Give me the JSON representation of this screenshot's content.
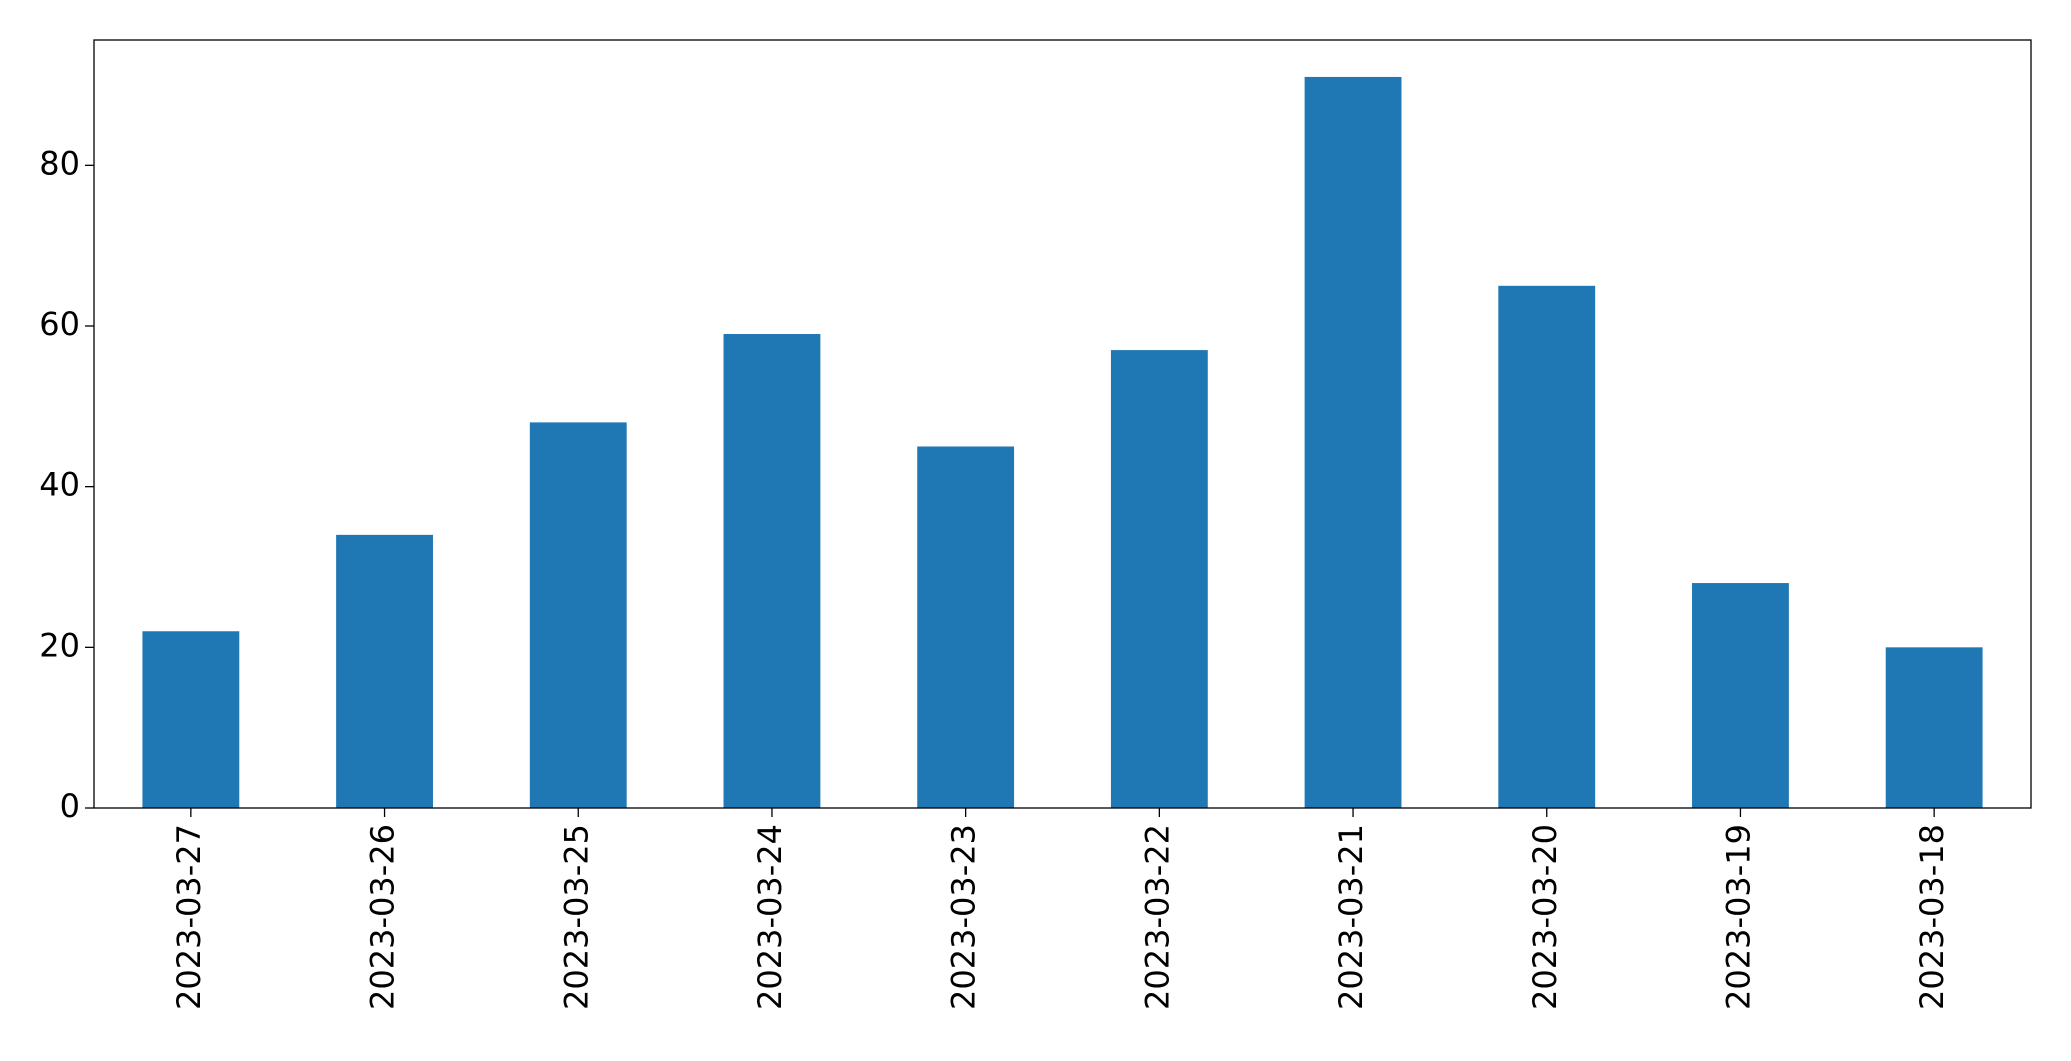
{
  "chart_data": {
    "type": "bar",
    "categories": [
      "2023-03-27",
      "2023-03-26",
      "2023-03-25",
      "2023-03-24",
      "2023-03-23",
      "2023-03-22",
      "2023-03-21",
      "2023-03-20",
      "2023-03-19",
      "2023-03-18"
    ],
    "values": [
      22,
      34,
      48,
      59,
      45,
      57,
      91,
      65,
      28,
      20
    ],
    "color": "#1f77b4",
    "ylim": [
      0,
      95.6
    ],
    "yticks": [
      0,
      20,
      40,
      60,
      80
    ],
    "grid": false
  }
}
